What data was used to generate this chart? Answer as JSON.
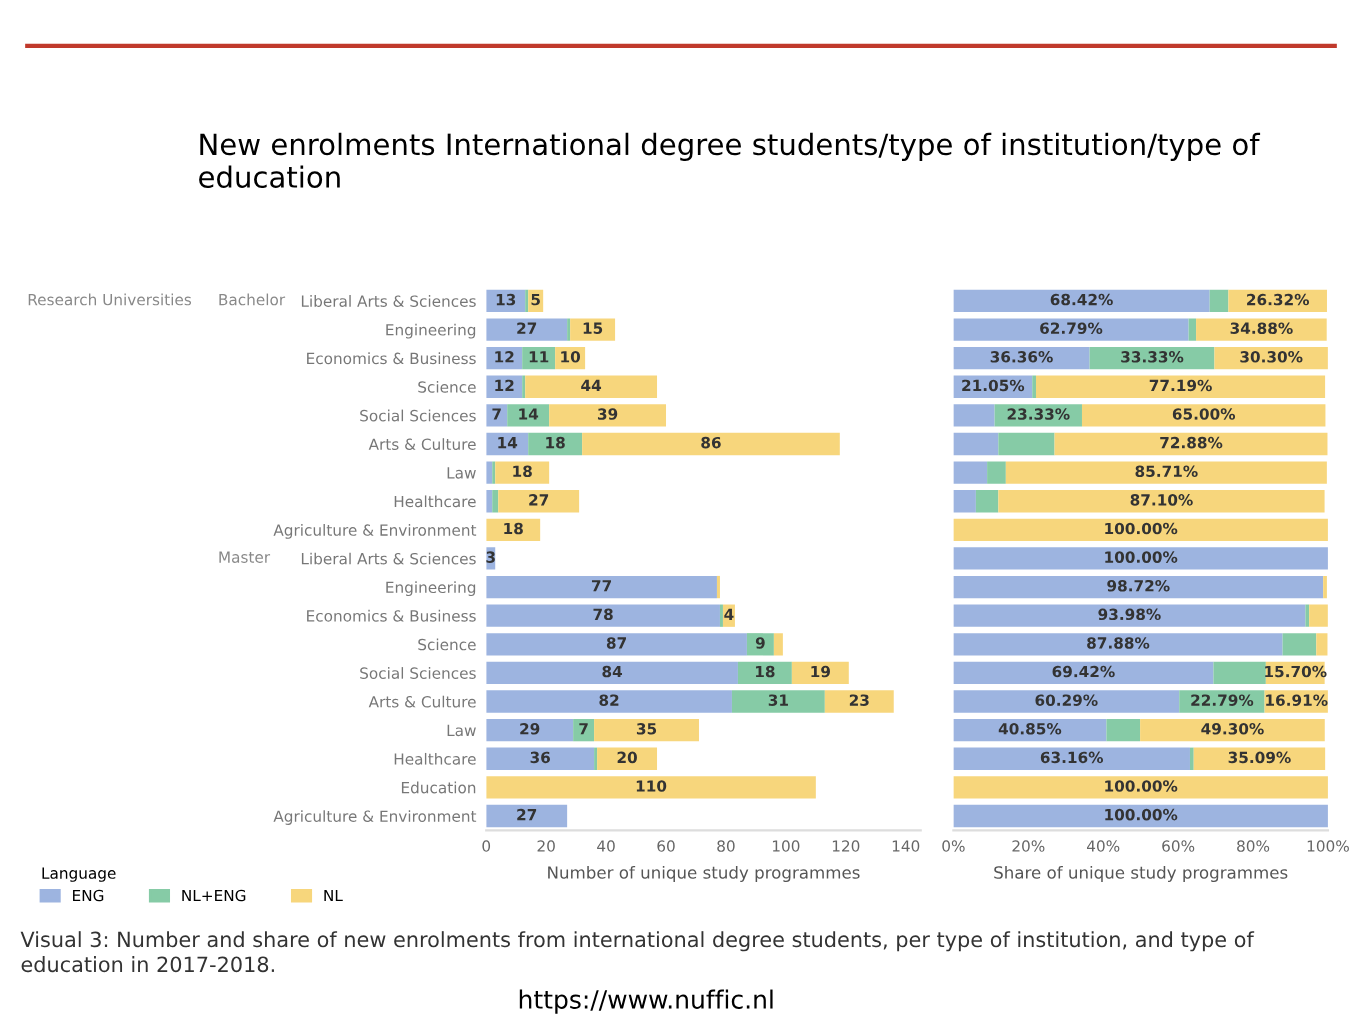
{
  "chart_data": [
    {
      "type": "bar",
      "orientation": "horizontal",
      "stacked": true,
      "title": "New enrolments International degree students/type of institution/type of education",
      "categories": [
        "Liberal Arts & Sciences",
        "Engineering",
        "Economics & Business",
        "Science",
        "Social Sciences",
        "Arts & Culture",
        "Law",
        "Healthcare",
        "Agriculture & Environment",
        "Liberal Arts & Sciences",
        "Engineering",
        "Economics & Business",
        "Science",
        "Social Sciences",
        "Arts & Culture",
        "Law",
        "Healthcare",
        "Education",
        "Agriculture & Environment"
      ],
      "series": [
        {
          "name": "ENG",
          "color": "#9db4e0",
          "values": [
            13,
            27,
            12,
            12,
            7,
            14,
            2,
            2,
            null,
            3,
            77,
            78,
            87,
            84,
            82,
            29,
            36,
            null,
            27
          ],
          "value_labels": [
            "13",
            "27",
            "12",
            "12",
            "7",
            "14",
            null,
            null,
            null,
            "3",
            "77",
            "78",
            "87",
            "84",
            "82",
            "29",
            "36",
            null,
            "27"
          ]
        },
        {
          "name": "NL+ENG",
          "color": "#86cba6",
          "values": [
            1,
            1,
            11,
            1,
            14,
            18,
            1,
            2,
            null,
            null,
            null,
            1,
            9,
            18,
            31,
            7,
            1,
            null,
            null
          ],
          "value_labels": [
            null,
            null,
            "11",
            null,
            "14",
            "18",
            null,
            null,
            null,
            null,
            null,
            null,
            "9",
            "18",
            "31",
            "7",
            null,
            null,
            null
          ]
        },
        {
          "name": "NL",
          "color": "#f7d67c",
          "values": [
            5,
            15,
            10,
            44,
            39,
            86,
            18,
            27,
            18,
            null,
            1,
            4,
            3,
            19,
            23,
            35,
            20,
            110,
            null
          ],
          "value_labels": [
            "5",
            "15",
            "10",
            "44",
            "39",
            "86",
            "18",
            "27",
            "18",
            null,
            null,
            "4",
            null,
            "19",
            "23",
            "35",
            "20",
            "110",
            null
          ]
        }
      ],
      "xlim": [
        0,
        145
      ],
      "xticks": [
        0,
        20,
        40,
        60,
        80,
        100,
        120,
        140
      ],
      "xlabel": "Number of unique study programmes",
      "legend": "bottom left",
      "legend_title": "Language",
      "annotations": [
        "Research Universities",
        "Bachelor",
        "Master",
        "Visual 3: Number and share of new enrolments from international degree students, per type of institution, and type of education in 2017-2018.",
        "https://www.nuffic.nl"
      ]
    },
    {
      "type": "bar",
      "orientation": "horizontal",
      "stacked": true,
      "categories": [
        null,
        null,
        null,
        null,
        null,
        null,
        null,
        null,
        null,
        null,
        null,
        null,
        null,
        null,
        null,
        null,
        null,
        null,
        null
      ],
      "series": [
        {
          "color": "#9db4e0",
          "values": [
            68.42,
            62.79,
            36.36,
            21.05,
            11,
            12,
            9,
            6,
            null,
            100.0,
            98.72,
            93.98,
            87.88,
            69.42,
            60.29,
            40.85,
            63.16,
            null,
            100.0
          ],
          "value_labels": [
            "68.42%",
            "62.79%",
            "36.36%",
            "21.05%",
            null,
            null,
            null,
            null,
            null,
            "100.00%",
            "98.72%",
            "93.98%",
            "87.88%",
            "69.42%",
            "60.29%",
            "40.85%",
            "63.16%",
            null,
            "100.00%"
          ]
        },
        {
          "color": "#86cba6",
          "values": [
            5,
            2,
            33.33,
            1,
            23.33,
            15,
            5,
            6,
            null,
            null,
            null,
            1,
            9,
            14,
            22.79,
            9,
            1,
            null,
            null
          ],
          "value_labels": [
            null,
            null,
            "33.33%",
            null,
            "23.33%",
            null,
            null,
            null,
            null,
            null,
            null,
            null,
            null,
            null,
            "22.79%",
            null,
            null,
            null,
            null
          ]
        },
        {
          "color": "#f7d67c",
          "values": [
            26.32,
            34.88,
            30.3,
            77.19,
            65.0,
            72.88,
            85.71,
            87.1,
            100.0,
            null,
            1,
            5,
            3,
            15.7,
            16.91,
            49.3,
            35.09,
            100.0,
            null
          ],
          "value_labels": [
            "26.32%",
            "34.88%",
            "30.30%",
            "77.19%",
            "65.00%",
            "72.88%",
            "85.71%",
            "87.10%",
            "100.00%",
            null,
            null,
            null,
            null,
            "15.70%",
            "16.91%",
            "49.30%",
            "35.09%",
            "100.00%",
            null
          ]
        }
      ],
      "xlim": [
        0,
        100
      ],
      "xticks": [
        {
          "value": 0,
          "label": "0%"
        },
        {
          "value": 20,
          "label": "20%"
        },
        {
          "value": 40,
          "label": "40%"
        },
        {
          "value": 60,
          "label": "60%"
        },
        {
          "value": 80,
          "label": "80%"
        },
        {
          "value": 100,
          "label": "100%"
        }
      ],
      "xlabel": "Share of unique study programmes"
    }
  ]
}
